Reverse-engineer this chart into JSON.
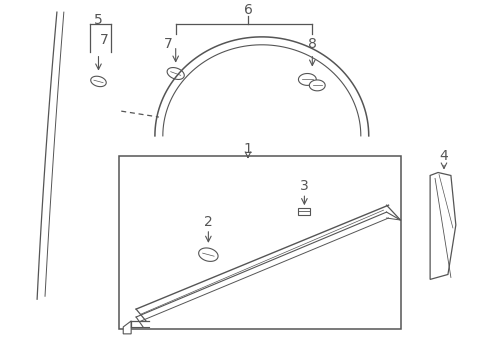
{
  "fig_width": 4.89,
  "fig_height": 3.6,
  "dpi": 100,
  "bg_color": "#ffffff",
  "lc": "#555555",
  "fs": 9
}
